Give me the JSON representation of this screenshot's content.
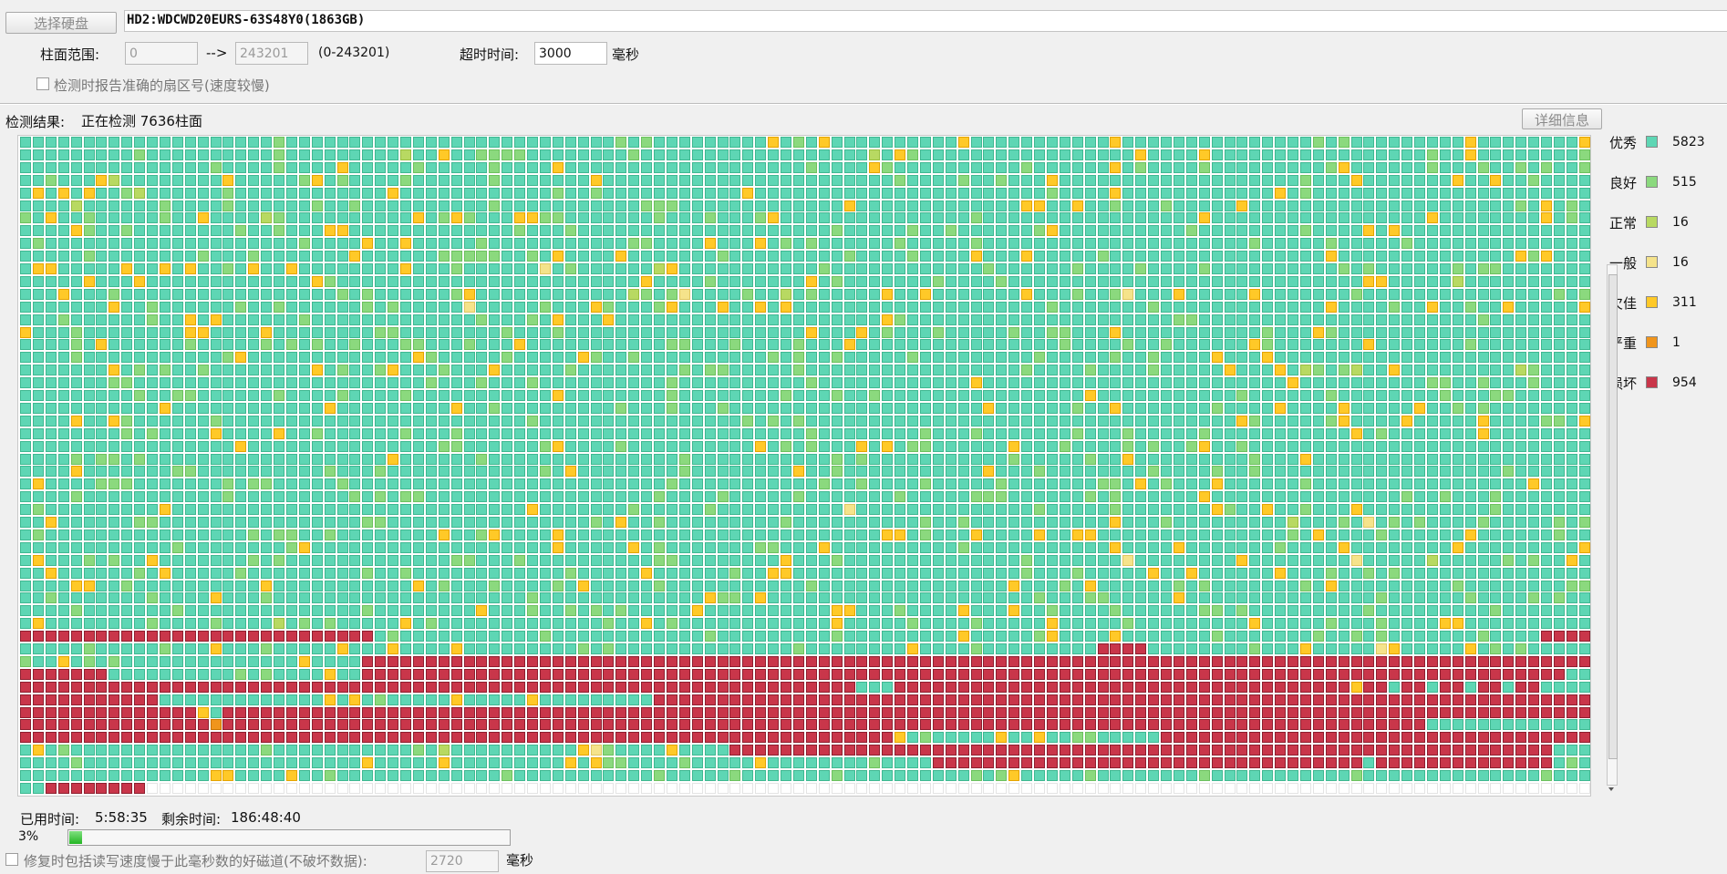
{
  "toolbar": {
    "select_disk_button": "选择硬盘",
    "disk_name": "HD2:WDCWD20EURS-63S48Y0(1863GB)"
  },
  "range": {
    "label": "柱面范围:",
    "from": "0",
    "arrow": "-->",
    "to": "243201",
    "hint": "(0-243201)",
    "timeout_label": "超时时间:",
    "timeout_value": "3000",
    "timeout_unit": "毫秒"
  },
  "options": {
    "report_exact_sector": "检测时报告准确的扇区号(速度较慢)",
    "report_exact_sector_checked": false
  },
  "status": {
    "label": "检测结果:",
    "text": "正在检测 7636柱面",
    "details_button": "详细信息"
  },
  "legend": [
    {
      "name": "优秀",
      "count": "5823",
      "color": "#5ed6b4"
    },
    {
      "name": "良好",
      "count": "515",
      "color": "#8bd97e"
    },
    {
      "name": "正常",
      "count": "16",
      "color": "#b8d962"
    },
    {
      "name": "一般",
      "count": "16",
      "color": "#f5e38b"
    },
    {
      "name": "欠佳",
      "count": "311",
      "color": "#ffc928"
    },
    {
      "name": "严重",
      "count": "1",
      "color": "#f0951c"
    },
    {
      "name": "损坏",
      "count": "954",
      "color": "#c9364a"
    }
  ],
  "timing": {
    "elapsed_label": "已用时间:",
    "elapsed": "5:58:35",
    "remaining_label": "剩余时间:",
    "remaining": "186:48:40"
  },
  "progress": {
    "percent_text": "3%",
    "fraction": 0.03
  },
  "repair": {
    "label": "修复时包括读写速度慢于此毫秒数的好磁道(不破坏数据):",
    "value": "2720",
    "unit": "毫秒",
    "checked": false
  },
  "grid": {
    "columns": 124,
    "rows": 52,
    "cells_scanned": 7636
  }
}
